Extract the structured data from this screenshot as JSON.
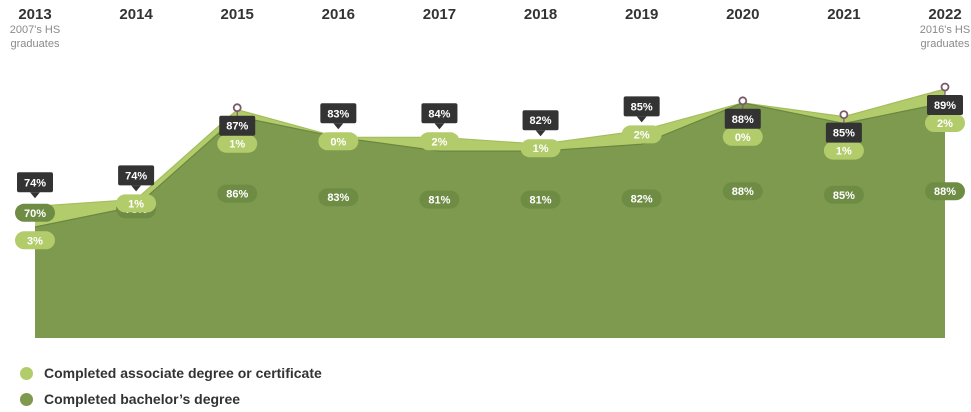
{
  "colors": {
    "associate": "#b3cc6b",
    "bachelor": "#7e9a4f",
    "bachelor_pill": "#6f8c45",
    "total_box": "#333333",
    "marker": "#7a5a6a"
  },
  "year_notes": [
    {
      "year": "2013",
      "lines": [
        "2007's HS",
        "graduates"
      ]
    },
    {
      "year": "2022",
      "lines": [
        "2016's HS",
        "graduates"
      ]
    }
  ],
  "legend": [
    {
      "label": "Completed associate degree or certificate",
      "color": "#b3cc6b"
    },
    {
      "label": "Completed bachelor’s degree",
      "color": "#7e9a4f"
    }
  ],
  "chart_data": {
    "type": "area",
    "stacked": true,
    "categories": [
      "2013",
      "2014",
      "2015",
      "2016",
      "2017",
      "2018",
      "2019",
      "2020",
      "2021",
      "2022"
    ],
    "series": [
      {
        "name": "Completed bachelor’s degree",
        "values": [
          70,
          73,
          86,
          83,
          81,
          81,
          82,
          88,
          85,
          88
        ]
      },
      {
        "name": "Completed associate degree or certificate",
        "values": [
          3,
          1,
          1,
          0,
          2,
          1,
          2,
          0,
          1,
          2
        ]
      }
    ],
    "totals": [
      74,
      74,
      87,
      83,
      84,
      82,
      85,
      88,
      85,
      89
    ],
    "ylim": [
      0,
      100
    ]
  }
}
